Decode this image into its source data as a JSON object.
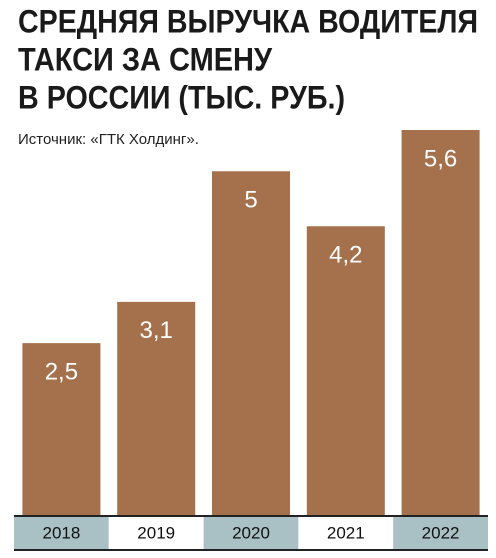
{
  "chart_data": {
    "type": "bar",
    "title": [
      "СРЕДНЯЯ ВЫРУЧКА ВОДИТЕЛЯ",
      "ТАКСИ ЗА СМЕНУ",
      "В РОССИИ (ТЫС. РУБ.)"
    ],
    "source": "Источник: «ГТК Холдинг».",
    "categories": [
      "2018",
      "2019",
      "2020",
      "2021",
      "2022"
    ],
    "values": [
      2.5,
      3.1,
      5,
      4.2,
      5.6
    ],
    "value_labels": [
      "2,5",
      "3,1",
      "5",
      "4,2",
      "5,6"
    ],
    "color": "#a5704c"
  }
}
